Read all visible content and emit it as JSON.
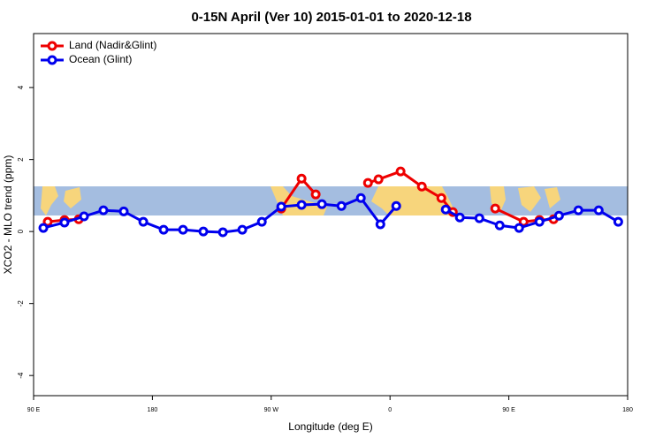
{
  "chart_data": {
    "type": "line",
    "title": "0-15N April (Ver 10)   2015-01-01 to 2020-12-18",
    "x_label": "Longitude (deg E)",
    "y_label": "XCO2 - MLO trend (ppm)",
    "xlim": [
      90,
      540
    ],
    "ylim": [
      -4.56,
      5.5
    ],
    "xticks": [
      {
        "value": 90,
        "label": "90 E"
      },
      180,
      {
        "value": 270,
        "label": "90 W"
      },
      {
        "value": 360,
        "label": "0"
      },
      {
        "value": 450,
        "label": "90 E"
      },
      {
        "value": 540,
        "label": "180"
      }
    ],
    "yticks": [
      -4,
      -2,
      0,
      2,
      4
    ],
    "legend": "top-left",
    "series": [
      {
        "name": "Land (Nadir&Glint)",
        "color": "#ee0000",
        "x": [
          100.7,
          113.4,
          124.2,
          null,
          277.6,
          293.0,
          303.7,
          null,
          343.3,
          351.3,
          368.0,
          384.1,
          398.9,
          407.6,
          null,
          439.7,
          461.2,
          473.2,
          483.9
        ],
        "values": [
          0.27,
          0.32,
          0.34,
          null,
          0.64,
          1.47,
          1.03,
          null,
          1.35,
          1.45,
          1.67,
          1.25,
          0.93,
          0.54,
          null,
          0.64,
          0.27,
          0.32,
          0.34
        ]
      },
      {
        "name": "Ocean (Glint)",
        "color": "#0000ee",
        "x": [
          97.4,
          113.4,
          128.2,
          142.9,
          158.3,
          173.1,
          188.5,
          203.2,
          218.6,
          233.4,
          248.1,
          262.9,
          277.6,
          293.0,
          308.4,
          323.2,
          337.9,
          352.7,
          364.7,
          null,
          402.2,
          412.9,
          427.7,
          443.1,
          457.8,
          473.2,
          488.0,
          502.7,
          518.1,
          532.9
        ],
        "values": [
          0.1,
          0.25,
          0.42,
          0.59,
          0.56,
          0.27,
          0.05,
          0.05,
          0.0,
          -0.02,
          0.05,
          0.27,
          0.69,
          0.74,
          0.76,
          0.71,
          0.93,
          0.2,
          0.71,
          null,
          0.61,
          0.39,
          0.37,
          0.17,
          0.1,
          0.27,
          0.44,
          0.59,
          0.59,
          0.27
        ]
      }
    ]
  }
}
